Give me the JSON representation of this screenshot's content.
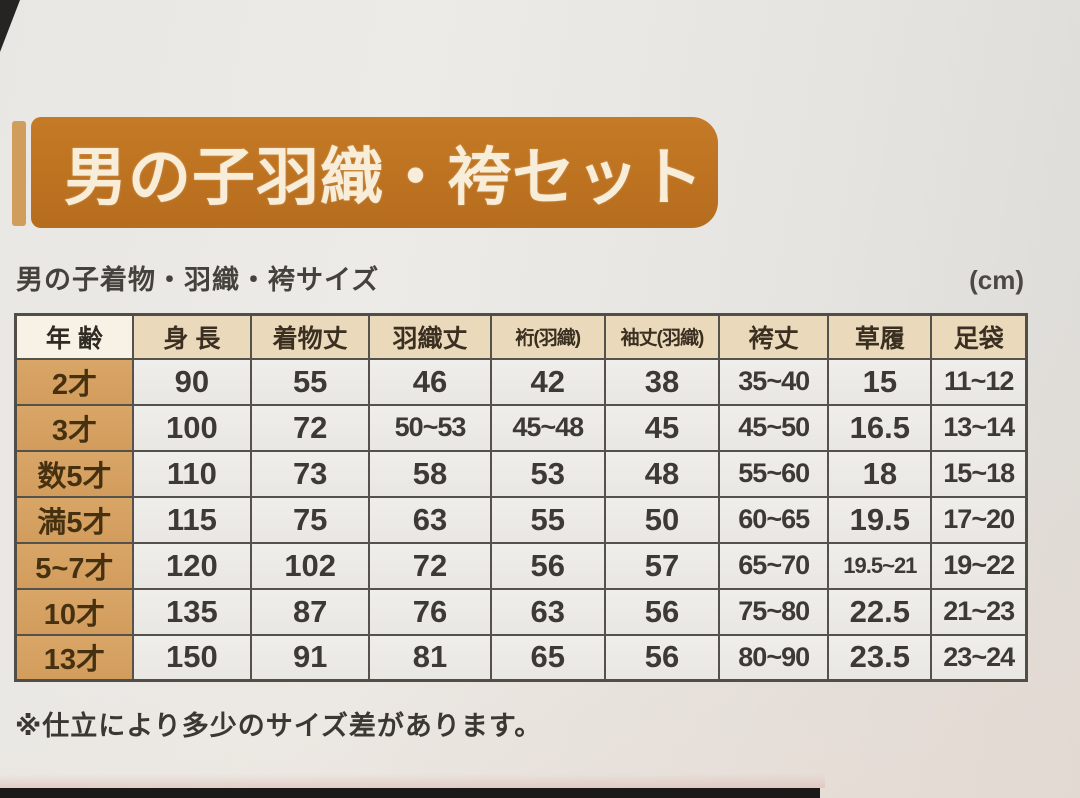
{
  "page": {
    "title": "男の子羽織・袴セット",
    "subtitle": "男の子着物・羽織・袴サイズ",
    "unit_label": "(cm)",
    "footnote": "※仕立により多少のサイズ差があります。"
  },
  "colors": {
    "banner_orange": "#bd7220",
    "banner_text": "#f8edd8",
    "accent_bar": "#cf9e5c",
    "header_bg": "#eadabb",
    "header_first_bg": "#f7f1e6",
    "age_column_bg": "#d6a263",
    "cell_bg": "#edecea",
    "table_border": "#55514b",
    "paper_bg": "#e8e6e2"
  },
  "table": {
    "columns": [
      {
        "label": "年 齢"
      },
      {
        "label": "身 長"
      },
      {
        "label": "着物丈"
      },
      {
        "label": "羽織丈"
      },
      {
        "label": "裄(羽織)"
      },
      {
        "label": "袖丈(羽織)"
      },
      {
        "label": "袴丈"
      },
      {
        "label": "草履"
      },
      {
        "label": "足袋"
      }
    ],
    "rows": [
      [
        "2才",
        "90",
        "55",
        "46",
        "42",
        "38",
        "35~40",
        "15",
        "11~12"
      ],
      [
        "3才",
        "100",
        "72",
        "50~53",
        "45~48",
        "45",
        "45~50",
        "16.5",
        "13~14"
      ],
      [
        "数5才",
        "110",
        "73",
        "58",
        "53",
        "48",
        "55~60",
        "18",
        "15~18"
      ],
      [
        "満5才",
        "115",
        "75",
        "63",
        "55",
        "50",
        "60~65",
        "19.5",
        "17~20"
      ],
      [
        "5~7才",
        "120",
        "102",
        "72",
        "56",
        "57",
        "65~70",
        "19.5~21",
        "19~22"
      ],
      [
        "10才",
        "135",
        "87",
        "76",
        "63",
        "56",
        "75~80",
        "22.5",
        "21~23"
      ],
      [
        "13才",
        "150",
        "91",
        "81",
        "65",
        "56",
        "80~90",
        "23.5",
        "23~24"
      ]
    ]
  }
}
